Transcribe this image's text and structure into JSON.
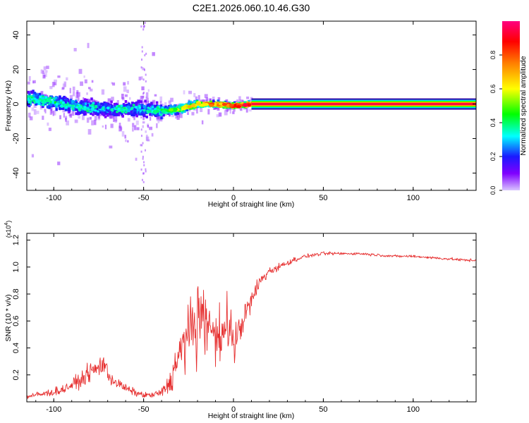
{
  "title": "C2E1.2026.060.10.46.G30",
  "colors": {
    "snr_line": "#e62f2f",
    "axis": "#000000",
    "background": "#ffffff",
    "colorbar_stops": [
      "#d9c4ff",
      "#8000ff",
      "#1a1aff",
      "#00ffff",
      "#00ff00",
      "#ffff00",
      "#ff8000",
      "#ff0000",
      "#ff0080"
    ]
  },
  "chart_data": [
    {
      "type": "heatmap",
      "name": "spectrogram",
      "xlabel": "Height of straight line (km)",
      "ylabel": "Frequency (Hz)",
      "xlim": [
        -115,
        135
      ],
      "ylim": [
        -50,
        48
      ],
      "xticks": [
        "-100",
        "-50",
        "0",
        "50",
        "100"
      ],
      "xtick_values": [
        -100,
        -50,
        0,
        50,
        100
      ],
      "yticks": [
        "40",
        "20",
        "0",
        "-20",
        "-40"
      ],
      "ytick_values": [
        40,
        20,
        0,
        -20,
        -40
      ],
      "ridge": [
        {
          "x": -110,
          "freq": 3,
          "amp": 0.4
        },
        {
          "x": -100,
          "freq": 1,
          "amp": 0.38
        },
        {
          "x": -90,
          "freq": -1,
          "amp": 0.35
        },
        {
          "x": -80,
          "freq": -2,
          "amp": 0.33
        },
        {
          "x": -70,
          "freq": -3,
          "amp": 0.3
        },
        {
          "x": -60,
          "freq": -3,
          "amp": 0.28
        },
        {
          "x": -50,
          "freq": -3,
          "amp": 0.3
        },
        {
          "x": -40,
          "freq": -4,
          "amp": 0.42
        },
        {
          "x": -30,
          "freq": -3,
          "amp": 0.55
        },
        {
          "x": -20,
          "freq": 0,
          "amp": 0.7
        },
        {
          "x": -10,
          "freq": 0,
          "amp": 0.78
        },
        {
          "x": 0,
          "freq": -1,
          "amp": 0.82
        },
        {
          "x": 10,
          "freq": 0,
          "amp": 0.95
        },
        {
          "x": 60,
          "freq": 0,
          "amp": 0.98
        },
        {
          "x": 135,
          "freq": 0,
          "amp": 0.95
        }
      ],
      "colorbar": {
        "label": "Normalized spectral amplitude",
        "ticks": [
          "0.0",
          "0.2",
          "0.4",
          "0.6",
          "0.8"
        ],
        "tick_values": [
          0.0,
          0.2,
          0.4,
          0.6,
          0.8
        ],
        "range": [
          0,
          1
        ]
      }
    },
    {
      "type": "line",
      "name": "snr",
      "xlabel": "Height of straight line (km)",
      "ylabel": "SNR (10 * v/v)",
      "yscale_note": "(x10^4)",
      "yscale_base": "(x10",
      "yscale_exp": "4",
      "yscale_close": ")",
      "xlim": [
        -115,
        135
      ],
      "ylim": [
        0,
        1.25
      ],
      "xticks": [
        "-100",
        "-50",
        "0",
        "50",
        "100"
      ],
      "xtick_values": [
        -100,
        -50,
        0,
        50,
        100
      ],
      "yticks": [
        "0.2",
        "0.4",
        "0.6",
        "0.8",
        "1.0",
        "1.2"
      ],
      "ytick_values": [
        0.2,
        0.4,
        0.6,
        0.8,
        1.0,
        1.2
      ],
      "x": [
        -115,
        -105,
        -95,
        -85,
        -80,
        -75,
        -72,
        -70,
        -65,
        -60,
        -55,
        -50,
        -45,
        -40,
        -35,
        -30,
        -25,
        -20,
        -15,
        -10,
        -5,
        0,
        5,
        10,
        15,
        20,
        25,
        30,
        35,
        40,
        45,
        50,
        60,
        70,
        80,
        90,
        100,
        110,
        120,
        130,
        135
      ],
      "values": [
        0.04,
        0.06,
        0.09,
        0.16,
        0.22,
        0.25,
        0.3,
        0.2,
        0.14,
        0.1,
        0.07,
        0.05,
        0.05,
        0.07,
        0.15,
        0.35,
        0.5,
        0.6,
        0.55,
        0.45,
        0.5,
        0.4,
        0.6,
        0.75,
        0.9,
        0.97,
        1.0,
        1.03,
        1.06,
        1.08,
        1.09,
        1.1,
        1.1,
        1.1,
        1.09,
        1.08,
        1.08,
        1.07,
        1.06,
        1.05,
        1.05
      ],
      "noise_amplitude": [
        0.03,
        0.04,
        0.05,
        0.08,
        0.1,
        0.12,
        0.15,
        0.09,
        0.06,
        0.05,
        0.04,
        0.03,
        0.03,
        0.05,
        0.12,
        0.25,
        0.35,
        0.4,
        0.35,
        0.3,
        0.3,
        0.2,
        0.15,
        0.12,
        0.08,
        0.05,
        0.04,
        0.03,
        0.03,
        0.02,
        0.02,
        0.02,
        0.015,
        0.015,
        0.015,
        0.015,
        0.015,
        0.015,
        0.015,
        0.015,
        0.015
      ]
    }
  ]
}
